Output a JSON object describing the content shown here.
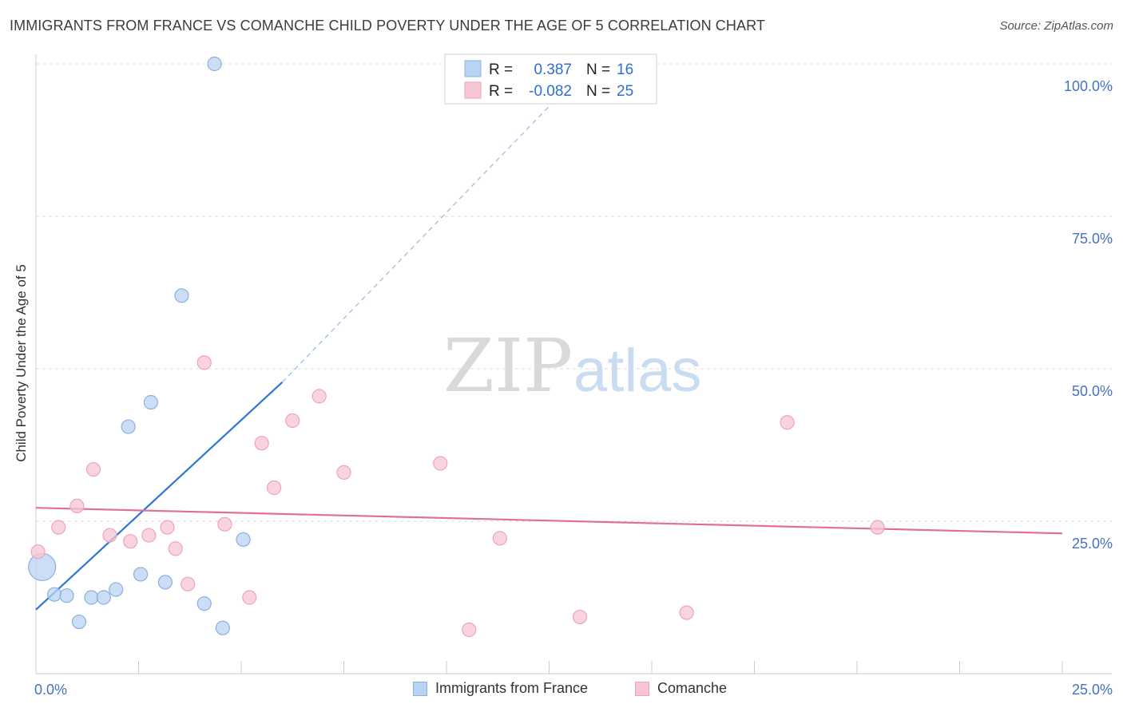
{
  "header": {
    "title": "IMMIGRANTS FROM FRANCE VS COMANCHE CHILD POVERTY UNDER THE AGE OF 5 CORRELATION CHART",
    "source": "Source: ZipAtlas.com"
  },
  "watermark": {
    "zip": "ZIP",
    "atlas": "atlas"
  },
  "colors": {
    "blue_fill": "#b9d3f2",
    "blue_stroke": "#8ab0e0",
    "blue_line": "#2e75d6",
    "pink_fill": "#f7c6d4",
    "pink_stroke": "#eea3bb",
    "pink_line": "#e0709a",
    "tick_label": "#4472c4",
    "grid": "#dddddd"
  },
  "legend": {
    "rows": [
      {
        "r_label": "R =",
        "r_value": "0.387",
        "n_label": "N =",
        "n_value": "16"
      },
      {
        "r_label": "R =",
        "r_value": "-0.082",
        "n_label": "N =",
        "n_value": "25"
      }
    ],
    "bottom": [
      "Immigrants from France",
      "Comanche"
    ]
  },
  "chart_data": {
    "type": "scatter",
    "xlabel": "",
    "ylabel": "Child Poverty Under the Age of 5",
    "xlim": [
      0,
      25
    ],
    "ylim": [
      0,
      100
    ],
    "x_ticks": [
      "0.0%",
      "25.0%"
    ],
    "y_ticks": [
      {
        "value": 25,
        "label": "25.0%"
      },
      {
        "value": 50,
        "label": "50.0%"
      },
      {
        "value": 75,
        "label": "75.0%"
      },
      {
        "value": 100,
        "label": "100.0%"
      }
    ],
    "grid": "horizontal dashed",
    "legend_position": "top-center",
    "series": [
      {
        "name": "Immigrants from France",
        "color": "blue",
        "points": [
          {
            "x": 0.15,
            "y": 17.5,
            "size": "large"
          },
          {
            "x": 0.45,
            "y": 13.0
          },
          {
            "x": 0.75,
            "y": 12.8
          },
          {
            "x": 1.05,
            "y": 8.5
          },
          {
            "x": 1.35,
            "y": 12.5
          },
          {
            "x": 1.65,
            "y": 12.5
          },
          {
            "x": 1.95,
            "y": 13.8
          },
          {
            "x": 2.25,
            "y": 40.5
          },
          {
            "x": 2.55,
            "y": 16.3
          },
          {
            "x": 2.8,
            "y": 44.5
          },
          {
            "x": 3.15,
            "y": 15.0
          },
          {
            "x": 3.55,
            "y": 62.0
          },
          {
            "x": 4.1,
            "y": 11.5
          },
          {
            "x": 4.35,
            "y": 100.0
          },
          {
            "x": 4.55,
            "y": 7.5
          },
          {
            "x": 5.05,
            "y": 22.0
          }
        ],
        "trend": {
          "x0": 0.0,
          "y0": 10.5,
          "x_solid_end": 6.0,
          "y_solid_end": 47.8,
          "x_dash_end": 13.5,
          "y_dash_end": 100.0
        }
      },
      {
        "name": "Comanche",
        "color": "pink",
        "points": [
          {
            "x": 0.05,
            "y": 20.0
          },
          {
            "x": 0.55,
            "y": 24.0
          },
          {
            "x": 1.0,
            "y": 27.5
          },
          {
            "x": 1.4,
            "y": 33.5
          },
          {
            "x": 1.8,
            "y": 22.7
          },
          {
            "x": 2.3,
            "y": 21.7
          },
          {
            "x": 2.75,
            "y": 22.7
          },
          {
            "x": 3.2,
            "y": 24.0
          },
          {
            "x": 3.4,
            "y": 20.5
          },
          {
            "x": 3.7,
            "y": 14.7
          },
          {
            "x": 4.1,
            "y": 51.0
          },
          {
            "x": 4.6,
            "y": 24.5
          },
          {
            "x": 5.2,
            "y": 12.5
          },
          {
            "x": 5.5,
            "y": 37.8
          },
          {
            "x": 5.8,
            "y": 30.5
          },
          {
            "x": 6.25,
            "y": 41.5
          },
          {
            "x": 6.9,
            "y": 45.5
          },
          {
            "x": 7.5,
            "y": 33.0
          },
          {
            "x": 9.85,
            "y": 34.5
          },
          {
            "x": 10.55,
            "y": 7.2
          },
          {
            "x": 11.3,
            "y": 22.2
          },
          {
            "x": 13.25,
            "y": 9.3
          },
          {
            "x": 15.85,
            "y": 10.0
          },
          {
            "x": 18.3,
            "y": 41.2
          },
          {
            "x": 20.5,
            "y": 24.0
          }
        ],
        "trend": {
          "x0": 0.0,
          "y0": 27.2,
          "x1": 25.0,
          "y1": 23.0
        }
      }
    ]
  }
}
